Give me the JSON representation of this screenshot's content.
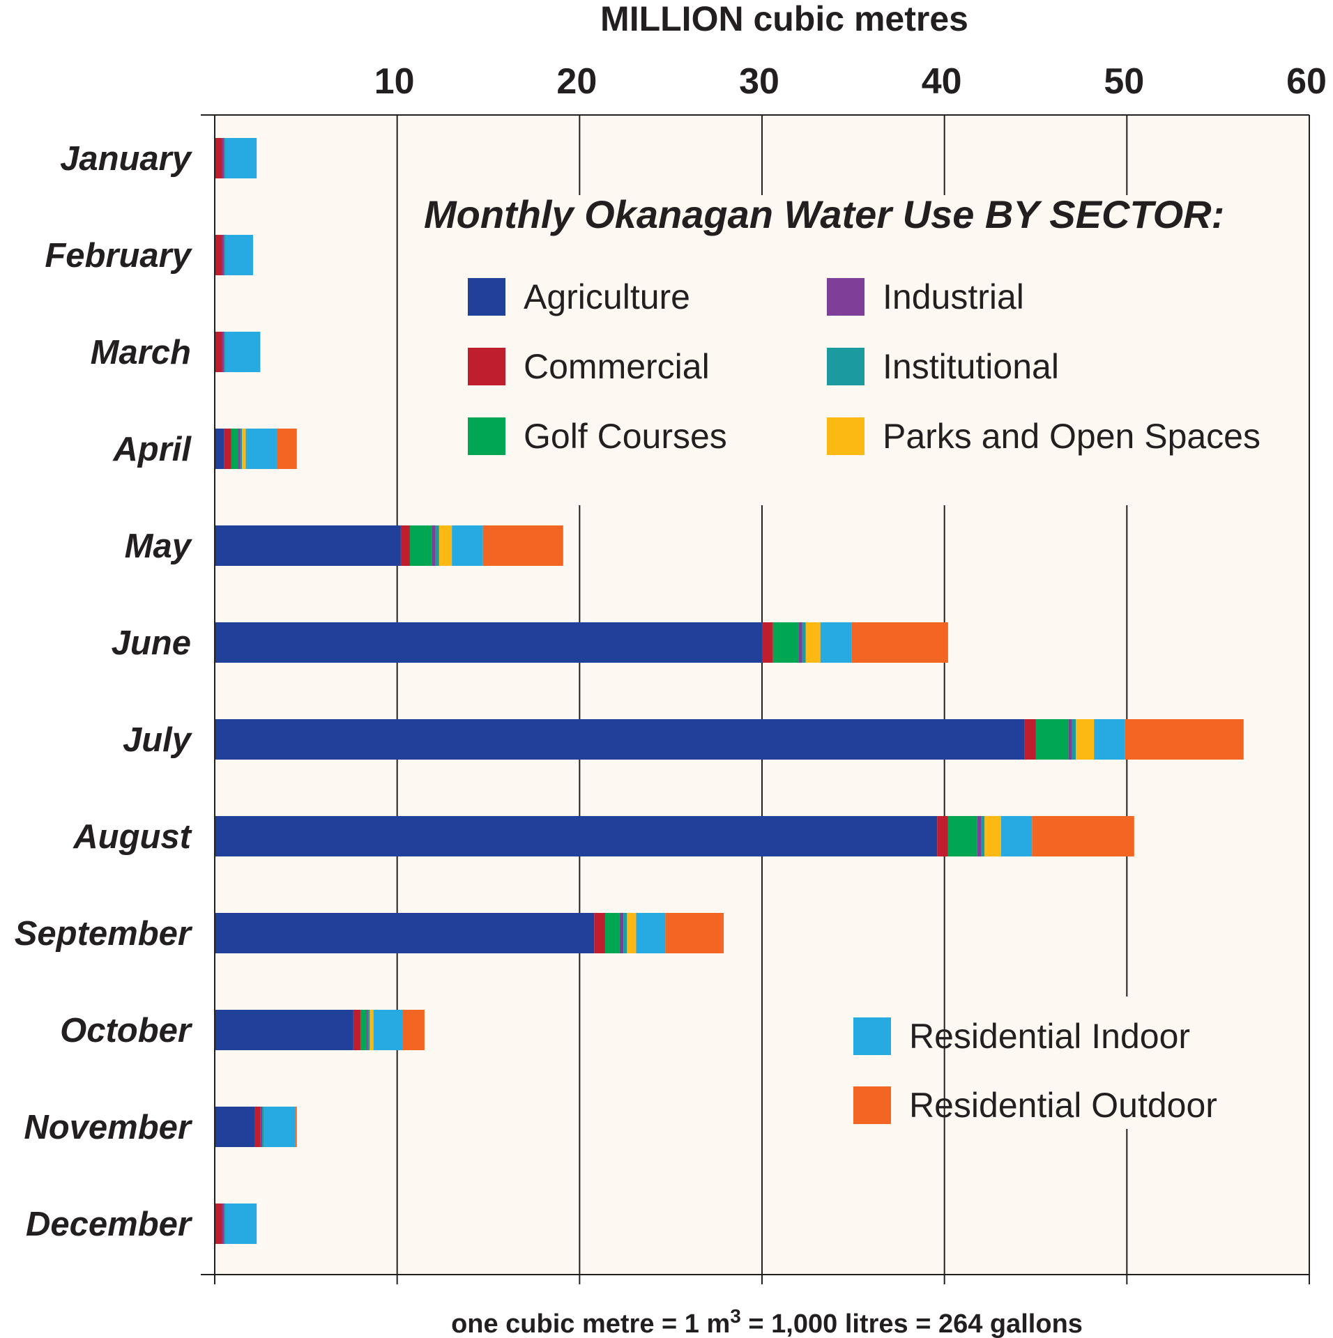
{
  "chart_data": {
    "type": "bar",
    "orientation": "horizontal",
    "stacked": true,
    "title": "Monthly Okanagan Water Use BY SECTOR:",
    "xlabel": "MILLION cubic metres",
    "xlim": [
      0,
      60
    ],
    "xticks": [
      10,
      20,
      30,
      40,
      50,
      60
    ],
    "grid": "vertical",
    "footnote": {
      "prefix": "one cubic metre = 1 m",
      "superscript": "3",
      "suffix": " = 1,000 litres = 264 gallons"
    },
    "categories": [
      "January",
      "February",
      "March",
      "April",
      "May",
      "June",
      "July",
      "August",
      "September",
      "October",
      "November",
      "December"
    ],
    "series": [
      {
        "name": "Agriculture",
        "color": "#21409a",
        "values": [
          0,
          0,
          0,
          0.5,
          10.2,
          30.0,
          44.4,
          39.6,
          20.8,
          7.6,
          2.2,
          0
        ]
      },
      {
        "name": "Commercial",
        "color": "#be1e2d",
        "values": [
          0.4,
          0.4,
          0.4,
          0.4,
          0.5,
          0.6,
          0.6,
          0.6,
          0.6,
          0.4,
          0.3,
          0.4
        ]
      },
      {
        "name": "Golf Courses",
        "color": "#00a651",
        "values": [
          0,
          0,
          0,
          0.4,
          1.2,
          1.4,
          1.8,
          1.6,
          0.8,
          0.3,
          0,
          0
        ]
      },
      {
        "name": "Industrial",
        "color": "#7f3f98",
        "values": [
          0.1,
          0.1,
          0.1,
          0.1,
          0.2,
          0.2,
          0.2,
          0.2,
          0.2,
          0.1,
          0.1,
          0.1
        ]
      },
      {
        "name": "Institutional",
        "color": "#1b9aa0",
        "values": [
          0.1,
          0.1,
          0.1,
          0.1,
          0.2,
          0.2,
          0.2,
          0.2,
          0.2,
          0.1,
          0.1,
          0.1
        ]
      },
      {
        "name": "Parks and Open Spaces",
        "color": "#fdb913",
        "values": [
          0,
          0,
          0,
          0.2,
          0.7,
          0.8,
          1.0,
          0.9,
          0.5,
          0.2,
          0,
          0
        ]
      },
      {
        "name": "Residential Indoor",
        "color": "#27aae1",
        "values": [
          1.7,
          1.5,
          1.9,
          1.7,
          1.7,
          1.7,
          1.7,
          1.7,
          1.6,
          1.6,
          1.7,
          1.7
        ]
      },
      {
        "name": "Residential Outdoor",
        "color": "#f26522",
        "values": [
          0,
          0,
          0,
          1.1,
          4.4,
          5.3,
          6.5,
          5.6,
          3.2,
          1.2,
          0.1,
          0
        ]
      }
    ],
    "plot_background": "#fdf8f2",
    "axis_color": "#231f20"
  }
}
